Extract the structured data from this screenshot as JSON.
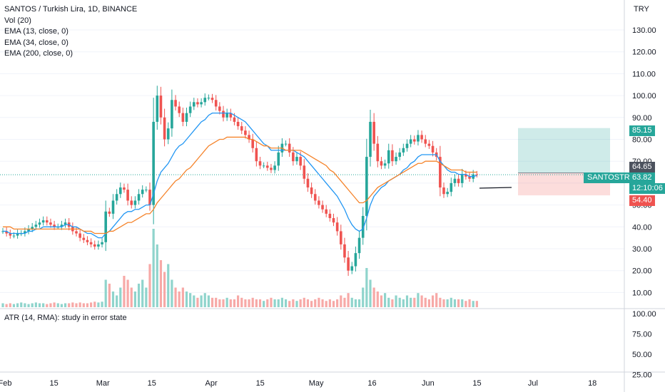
{
  "legend": {
    "symbol": "SANTOS / Turkish Lira, 1D, BINANCE",
    "vol": "Vol (20)",
    "ema13": "EMA (13, close, 0)",
    "ema34": "EMA (34, close, 0)",
    "ema200": "EMA (200, close, 0)"
  },
  "atr": {
    "label": "ATR (14, RMA): study in error state"
  },
  "price_axis": {
    "currency": "TRY",
    "ticks": [
      "130.00",
      "120.00",
      "110.00",
      "100.00",
      "90.00",
      "80.00",
      "70.00",
      "60.00",
      "50.00",
      "40.00",
      "30.00",
      "20.00",
      "10.00"
    ],
    "tick_values": [
      130,
      120,
      110,
      100,
      90,
      80,
      70,
      60,
      50,
      40,
      30,
      20,
      10
    ]
  },
  "atr_axis": {
    "ticks": [
      "100.00",
      "75.00",
      "50.00",
      "25.00"
    ],
    "tick_values": [
      100,
      75,
      50,
      25
    ]
  },
  "time_axis": {
    "labels": [
      "Feb",
      "15",
      "Mar",
      "15",
      "Apr",
      "15",
      "May",
      "16",
      "Jun",
      "15",
      "Jul",
      "18"
    ],
    "offsets_days": [
      0,
      14,
      28,
      42,
      59,
      73,
      89,
      105,
      121,
      135,
      151,
      168
    ]
  },
  "badges": {
    "target": "85.15",
    "entry": "64.65",
    "stop": "54.40",
    "symbol_label": "SANTOSTRY",
    "current": "63.82",
    "countdown": "12:10:06"
  },
  "chart_data": {
    "type": "candlestick",
    "colors": {
      "up": "#26a69a",
      "down": "#ef5350",
      "ema13": "#2196f3",
      "ema34": "#f5832a",
      "vol_up": "#8fd4cc",
      "vol_down": "#f7a9a7"
    },
    "ohlc_start": "Jan 24",
    "closes": [
      38,
      37,
      36,
      36,
      37,
      37,
      38,
      39,
      40,
      41,
      42,
      43,
      42,
      41,
      40,
      40,
      41,
      42,
      40,
      38,
      37,
      35,
      34,
      33,
      32,
      31,
      32,
      33,
      47,
      46,
      52,
      55,
      58,
      57,
      52,
      50,
      52,
      55,
      57,
      57,
      50,
      88,
      100,
      90,
      80,
      85,
      98,
      95,
      92,
      88,
      92,
      95,
      97,
      96,
      97,
      99,
      99,
      98,
      95,
      93,
      90,
      92,
      90,
      88,
      86,
      84,
      82,
      80,
      76,
      70,
      68,
      68,
      67,
      66,
      68,
      74,
      78,
      78,
      74,
      70,
      72,
      68,
      62,
      58,
      55,
      52,
      50,
      48,
      46,
      44,
      42,
      38,
      32,
      26,
      20,
      22,
      28,
      35,
      45,
      72,
      88,
      78,
      70,
      68,
      69,
      75,
      70,
      72,
      74,
      76,
      78,
      80,
      79,
      82,
      80,
      78,
      77,
      74,
      72,
      58,
      55,
      56,
      60,
      62,
      60,
      64,
      63,
      62,
      64,
      63.82
    ],
    "ema13": [
      38,
      38,
      37,
      37,
      37,
      37,
      37,
      38,
      38,
      39,
      39,
      40,
      40,
      40,
      40,
      40,
      40,
      41,
      41,
      40,
      40,
      39,
      38,
      37,
      37,
      36,
      35,
      35,
      37,
      38,
      40,
      42,
      44,
      46,
      47,
      47,
      48,
      48,
      49,
      50,
      50,
      55,
      61,
      65,
      67,
      69,
      72,
      75,
      77,
      78,
      80,
      82,
      84,
      86,
      88,
      89,
      91,
      92,
      92,
      92,
      92,
      92,
      92,
      91,
      90,
      89,
      88,
      86,
      84,
      82,
      80,
      78,
      77,
      75,
      75,
      75,
      75,
      75,
      75,
      75,
      74,
      73,
      72,
      70,
      68,
      66,
      64,
      62,
      60,
      58,
      56,
      54,
      51,
      48,
      44,
      41,
      39,
      38,
      39,
      44,
      50,
      54,
      56,
      58,
      59,
      61,
      62,
      63,
      64,
      66,
      67,
      69,
      70,
      72,
      73,
      73,
      73,
      73,
      73,
      70,
      68,
      66,
      65,
      65,
      64,
      64,
      64,
      63,
      63,
      63.5
    ],
    "ema34": [
      40,
      40,
      40,
      39,
      39,
      39,
      39,
      39,
      39,
      39,
      39,
      39,
      39,
      39,
      39,
      39,
      39,
      39,
      39,
      39,
      39,
      39,
      38,
      38,
      38,
      37,
      37,
      37,
      37,
      38,
      38,
      39,
      40,
      41,
      42,
      42,
      43,
      44,
      45,
      46,
      46,
      48,
      51,
      53,
      55,
      57,
      59,
      61,
      62,
      64,
      66,
      67,
      69,
      71,
      73,
      75,
      77,
      78,
      79,
      80,
      80,
      81,
      81,
      81,
      81,
      81,
      81,
      80,
      80,
      79,
      78,
      77,
      77,
      76,
      76,
      76,
      76,
      75,
      75,
      75,
      75,
      75,
      74,
      73,
      72,
      71,
      70,
      69,
      68,
      66,
      65,
      63,
      61,
      59,
      57,
      55,
      53,
      51,
      51,
      52,
      54,
      56,
      58,
      59,
      60,
      61,
      62,
      63,
      64,
      65,
      66,
      67,
      68,
      69,
      69,
      70,
      70,
      70,
      70,
      69,
      68,
      67,
      66,
      66,
      66,
      66,
      65,
      65,
      65,
      65
    ],
    "volumes_rel": [
      0.05,
      0.04,
      0.05,
      0.04,
      0.05,
      0.06,
      0.05,
      0.04,
      0.05,
      0.06,
      0.05,
      0.05,
      0.04,
      0.05,
      0.06,
      0.05,
      0.04,
      0.05,
      0.05,
      0.06,
      0.05,
      0.06,
      0.05,
      0.05,
      0.06,
      0.07,
      0.06,
      0.07,
      0.35,
      0.3,
      0.2,
      0.15,
      0.25,
      0.4,
      0.35,
      0.25,
      0.2,
      0.3,
      0.35,
      0.25,
      0.55,
      1.0,
      0.8,
      0.6,
      0.45,
      0.55,
      0.35,
      0.25,
      0.2,
      0.25,
      0.2,
      0.18,
      0.15,
      0.12,
      0.15,
      0.18,
      0.15,
      0.12,
      0.12,
      0.1,
      0.1,
      0.12,
      0.1,
      0.1,
      0.15,
      0.12,
      0.1,
      0.1,
      0.12,
      0.1,
      0.1,
      0.08,
      0.1,
      0.12,
      0.1,
      0.1,
      0.12,
      0.1,
      0.08,
      0.1,
      0.08,
      0.1,
      0.12,
      0.1,
      0.08,
      0.1,
      0.12,
      0.1,
      0.08,
      0.1,
      0.08,
      0.1,
      0.15,
      0.12,
      0.18,
      0.12,
      0.1,
      0.1,
      0.25,
      0.5,
      0.35,
      0.25,
      0.2,
      0.15,
      0.18,
      0.12,
      0.1,
      0.15,
      0.12,
      0.1,
      0.15,
      0.12,
      0.12,
      0.18,
      0.15,
      0.12,
      0.1,
      0.15,
      0.18,
      0.12,
      0.1,
      0.1,
      0.12,
      0.1,
      0.1,
      0.1,
      0.08,
      0.1,
      0.08,
      0.08
    ],
    "position": {
      "target": 85.15,
      "entry": 64.65,
      "stop": 54.4
    },
    "ylim": [
      5,
      140
    ]
  }
}
